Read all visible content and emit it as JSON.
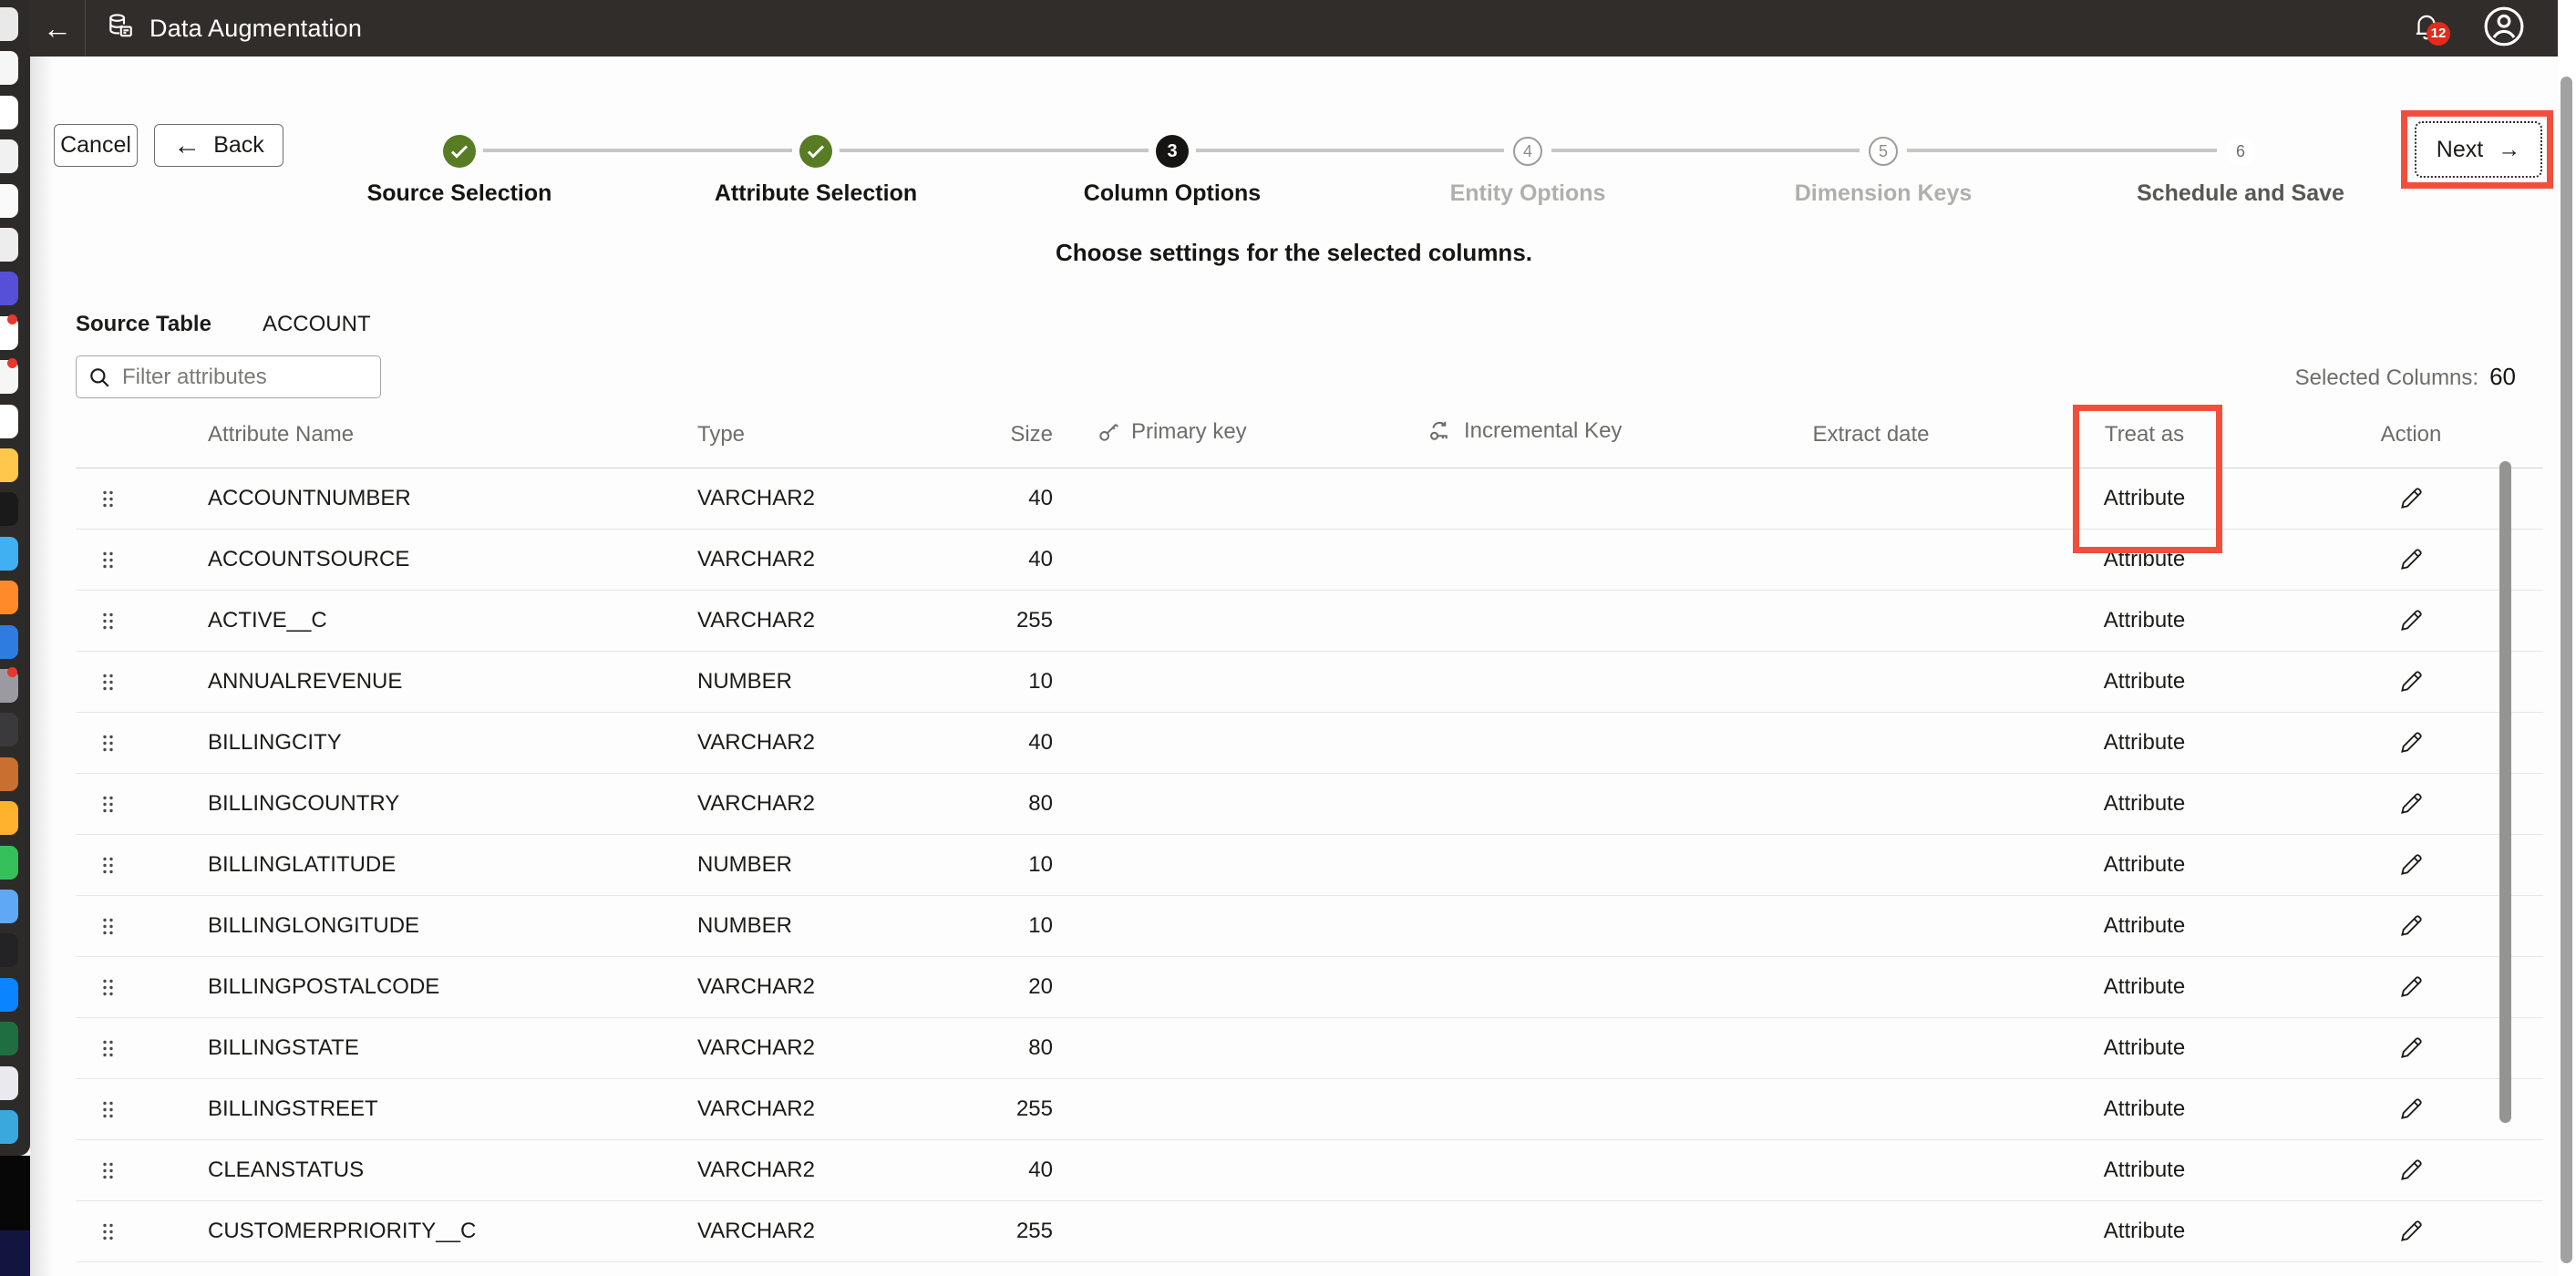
{
  "app": {
    "title": "Data Augmentation",
    "notifications_count": "12",
    "header_bg": "#312d2a"
  },
  "wizard": {
    "cancel_label": "Cancel",
    "back_label": "Back",
    "next_label": "Next",
    "subtitle": "Choose settings for the selected columns.",
    "steps": [
      {
        "label": "Source Selection",
        "state": "completed"
      },
      {
        "label": "Attribute Selection",
        "state": "completed"
      },
      {
        "label": "Column Options",
        "state": "current",
        "number": "3"
      },
      {
        "label": "Entity Options",
        "state": "future",
        "number": "4"
      },
      {
        "label": "Dimension Keys",
        "state": "future",
        "number": "5"
      },
      {
        "label": "Schedule and Save",
        "state": "future-emphasis",
        "number": "6"
      }
    ],
    "completed_color": "#577c24",
    "current_color": "#161513"
  },
  "source": {
    "label": "Source Table",
    "value": "ACCOUNT"
  },
  "filter": {
    "placeholder": "Filter attributes"
  },
  "selected_columns": {
    "label": "Selected Columns:",
    "value": "60"
  },
  "table": {
    "headers": [
      "Attribute Name",
      "Type",
      "Size",
      "Primary key",
      "Incremental Key",
      "Extract date",
      "Treat as",
      "Action"
    ],
    "rows": [
      {
        "name": "ACCOUNTNUMBER",
        "type": "VARCHAR2",
        "size": "40",
        "treat_as": "Attribute"
      },
      {
        "name": "ACCOUNTSOURCE",
        "type": "VARCHAR2",
        "size": "40",
        "treat_as": "Attribute"
      },
      {
        "name": "ACTIVE__C",
        "type": "VARCHAR2",
        "size": "255",
        "treat_as": "Attribute"
      },
      {
        "name": "ANNUALREVENUE",
        "type": "NUMBER",
        "size": "10",
        "treat_as": "Attribute"
      },
      {
        "name": "BILLINGCITY",
        "type": "VARCHAR2",
        "size": "40",
        "treat_as": "Attribute"
      },
      {
        "name": "BILLINGCOUNTRY",
        "type": "VARCHAR2",
        "size": "80",
        "treat_as": "Attribute"
      },
      {
        "name": "BILLINGLATITUDE",
        "type": "NUMBER",
        "size": "10",
        "treat_as": "Attribute"
      },
      {
        "name": "BILLINGLONGITUDE",
        "type": "NUMBER",
        "size": "10",
        "treat_as": "Attribute"
      },
      {
        "name": "BILLINGPOSTALCODE",
        "type": "VARCHAR2",
        "size": "20",
        "treat_as": "Attribute"
      },
      {
        "name": "BILLINGSTATE",
        "type": "VARCHAR2",
        "size": "80",
        "treat_as": "Attribute"
      },
      {
        "name": "BILLINGSTREET",
        "type": "VARCHAR2",
        "size": "255",
        "treat_as": "Attribute"
      },
      {
        "name": "CLEANSTATUS",
        "type": "VARCHAR2",
        "size": "40",
        "treat_as": "Attribute"
      },
      {
        "name": "CUSTOMERPRIORITY__C",
        "type": "VARCHAR2",
        "size": "255",
        "treat_as": "Attribute"
      }
    ]
  },
  "annotations": {
    "highlight_color": "#f04f3c",
    "targets": [
      "next-button",
      "treat-as-column"
    ]
  },
  "dock": {
    "icons": [
      {
        "color": "#e9e9e9"
      },
      {
        "color": "#f6f6f6"
      },
      {
        "color": "#ffffff"
      },
      {
        "color": "#f1f1f1"
      },
      {
        "color": "#fafafa"
      },
      {
        "color": "#ededed"
      },
      {
        "color": "#5650d8"
      },
      {
        "color": "#ffffff",
        "badge": true
      },
      {
        "color": "#f6f6f6",
        "badge": true
      },
      {
        "color": "#ffffff"
      },
      {
        "color": "#ffc84d"
      },
      {
        "color": "#1a1a1a"
      },
      {
        "color": "#41b0f3"
      },
      {
        "color": "#ff8a2a"
      },
      {
        "color": "#2f7ce0"
      },
      {
        "color": "#9a9aa0",
        "badge": true
      },
      {
        "color": "#3a3a3c"
      },
      {
        "color": "#c96f2f"
      },
      {
        "color": "#ffb22e"
      },
      {
        "color": "#36c05a"
      },
      {
        "color": "#5fa8f5"
      },
      {
        "color": "#232325"
      },
      {
        "color": "#0a84ff"
      },
      {
        "color": "#1f6e41"
      },
      {
        "color": "#e9e9ee"
      },
      {
        "color": "#3aa8dc"
      }
    ]
  }
}
